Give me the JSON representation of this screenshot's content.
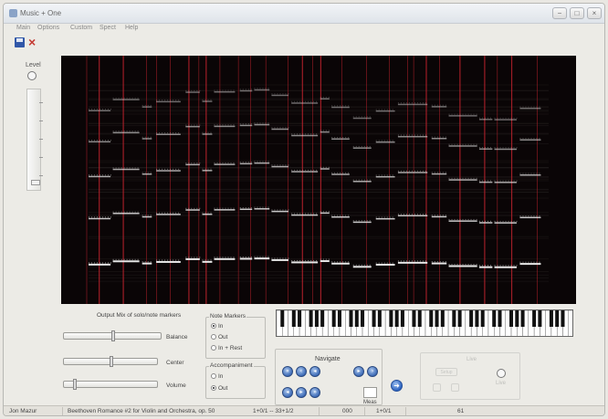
{
  "window": {
    "title": "Music + One",
    "controls": {
      "minimize": "−",
      "maximize": "□",
      "close": "×"
    }
  },
  "menu": [
    "Main",
    "Options",
    "Custom",
    "Spect",
    "Help"
  ],
  "toolbar": {
    "save_icon": "save-icon",
    "close_icon": "×"
  },
  "level": {
    "label": "Level"
  },
  "output_mix": {
    "title": "Output Mix of solo/note markers",
    "sliders": [
      {
        "label": "Balance"
      },
      {
        "label": "Center"
      },
      {
        "label": "Volume"
      }
    ]
  },
  "note_markers": {
    "title": "Note Markers",
    "options": [
      "In",
      "Out",
      "In + Rest"
    ],
    "selected": "In"
  },
  "accompaniment": {
    "title": "Accompaniment",
    "options": [
      "In",
      "Out"
    ],
    "selected": "Out"
  },
  "navigate": {
    "title": "Navigate",
    "measure_label": "Meas",
    "go_icon": "arrow-right-icon"
  },
  "faded_panel": {
    "label_top": "Live",
    "label_button": "Setup",
    "label_right": "Live"
  },
  "status": {
    "user": "Jon Mazur",
    "piece": "Beethoven Romance #2 for Violin and Orchestra, op. 50",
    "range": "1+0/1 -- 33+1/2",
    "counter": "000",
    "position": "1+0/1",
    "value": "61"
  },
  "colors": {
    "spectrogram_bg": "#0a0506",
    "marker": "#c0262e",
    "nav_button": "#3e6cb8"
  }
}
